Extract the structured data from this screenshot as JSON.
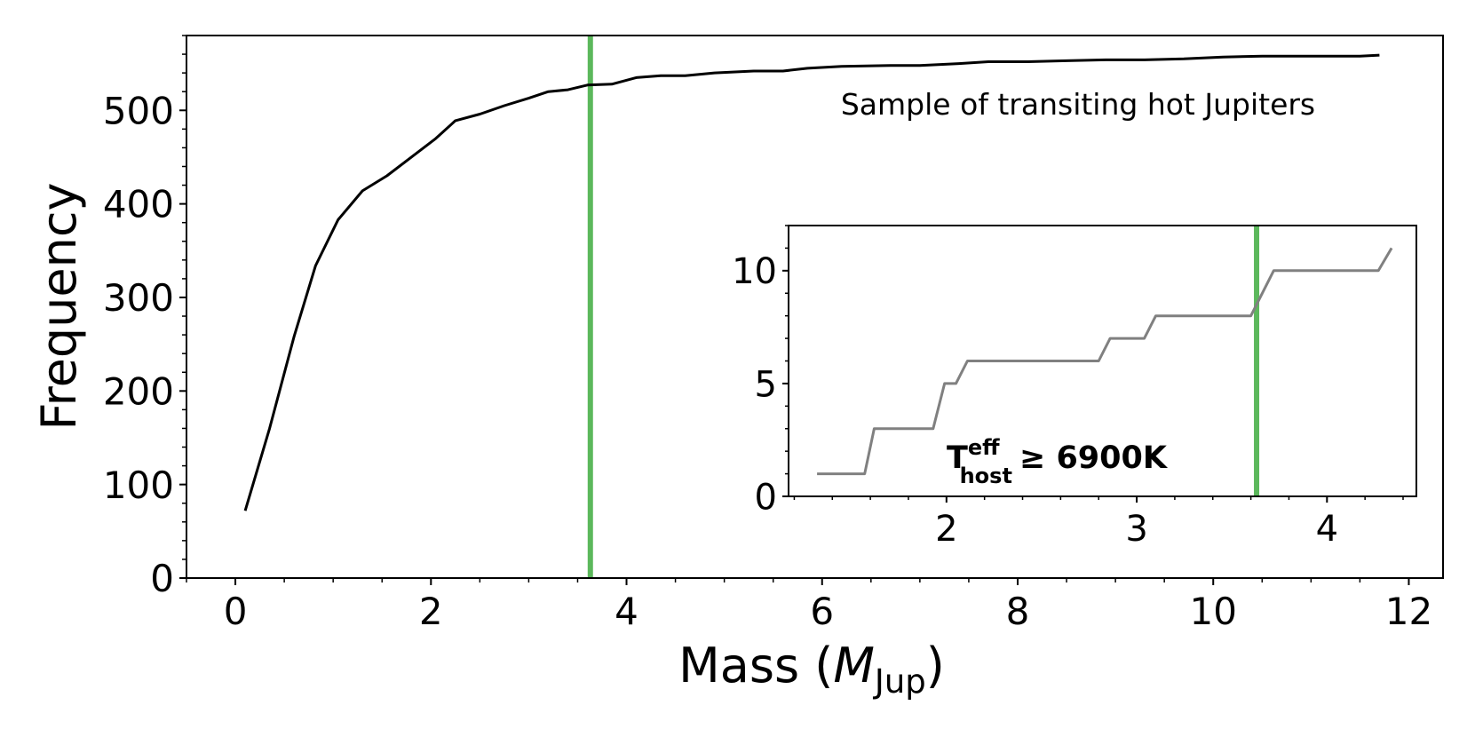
{
  "colors": {
    "main_line": "#000000",
    "inset_line": "#808080",
    "marker": "#5cb85c",
    "axes": "#000000"
  },
  "chart_data": [
    {
      "type": "line",
      "name": "main",
      "title": "",
      "xlabel_main": "Mass (",
      "xlabel_symbol": "M",
      "xlabel_sub": "Jup",
      "xlabel_close": ")",
      "ylabel": "Frequency",
      "xlim": [
        -0.5,
        12.35
      ],
      "ylim": [
        0,
        580
      ],
      "xticks": [
        0,
        2,
        4,
        6,
        8,
        10,
        12
      ],
      "xtick_labels": [
        "0",
        "2",
        "4",
        "6",
        "8",
        "10",
        "12"
      ],
      "yticks": [
        0,
        100,
        200,
        300,
        400,
        500
      ],
      "ytick_labels": [
        "0",
        "100",
        "200",
        "300",
        "400",
        "500"
      ],
      "annotation": "Sample of transiting hot Jupiters",
      "vline_x": 3.63,
      "series": [
        {
          "name": "cumulative count",
          "x": [
            0.1,
            0.35,
            0.6,
            0.82,
            1.05,
            1.3,
            1.55,
            1.8,
            2.05,
            2.25,
            2.5,
            2.75,
            3.0,
            3.2,
            3.4,
            3.6,
            3.85,
            4.1,
            4.35,
            4.6,
            4.9,
            5.3,
            5.6,
            5.85,
            6.2,
            6.7,
            7.0,
            7.4,
            7.7,
            8.1,
            8.5,
            8.9,
            9.3,
            9.7,
            10.1,
            10.5,
            11.0,
            11.5,
            11.7
          ],
          "y": [
            72,
            160,
            258,
            334,
            383,
            414,
            430,
            450,
            470,
            489,
            496,
            505,
            513,
            520,
            522,
            527,
            528,
            535,
            537,
            537,
            540,
            542,
            542,
            545,
            547,
            548,
            548,
            550,
            552,
            552,
            553,
            554,
            554,
            555,
            557,
            558,
            558,
            558,
            559
          ]
        }
      ]
    },
    {
      "type": "line",
      "name": "inset",
      "title": "",
      "xlim": [
        1.17,
        4.47
      ],
      "ylim": [
        0,
        12
      ],
      "xticks": [
        2,
        3,
        4
      ],
      "xtick_labels": [
        "2",
        "3",
        "4"
      ],
      "yticks": [
        0,
        5,
        10
      ],
      "ytick_labels": [
        "0",
        "5",
        "10"
      ],
      "label_T": "T",
      "label_sup": "eff",
      "label_sub": "host",
      "label_rest": "≥ 6900K",
      "vline_x": 3.63,
      "series": [
        {
          "name": "hot-star cumulative count",
          "x": [
            1.32,
            1.57,
            1.62,
            1.93,
            1.99,
            2.05,
            2.11,
            2.8,
            2.86,
            3.04,
            3.1,
            3.6,
            3.72,
            4.27,
            4.34
          ],
          "y": [
            1,
            1,
            3,
            3,
            5,
            5,
            6,
            6,
            7,
            7,
            8,
            8,
            10,
            10,
            11
          ]
        }
      ]
    }
  ]
}
